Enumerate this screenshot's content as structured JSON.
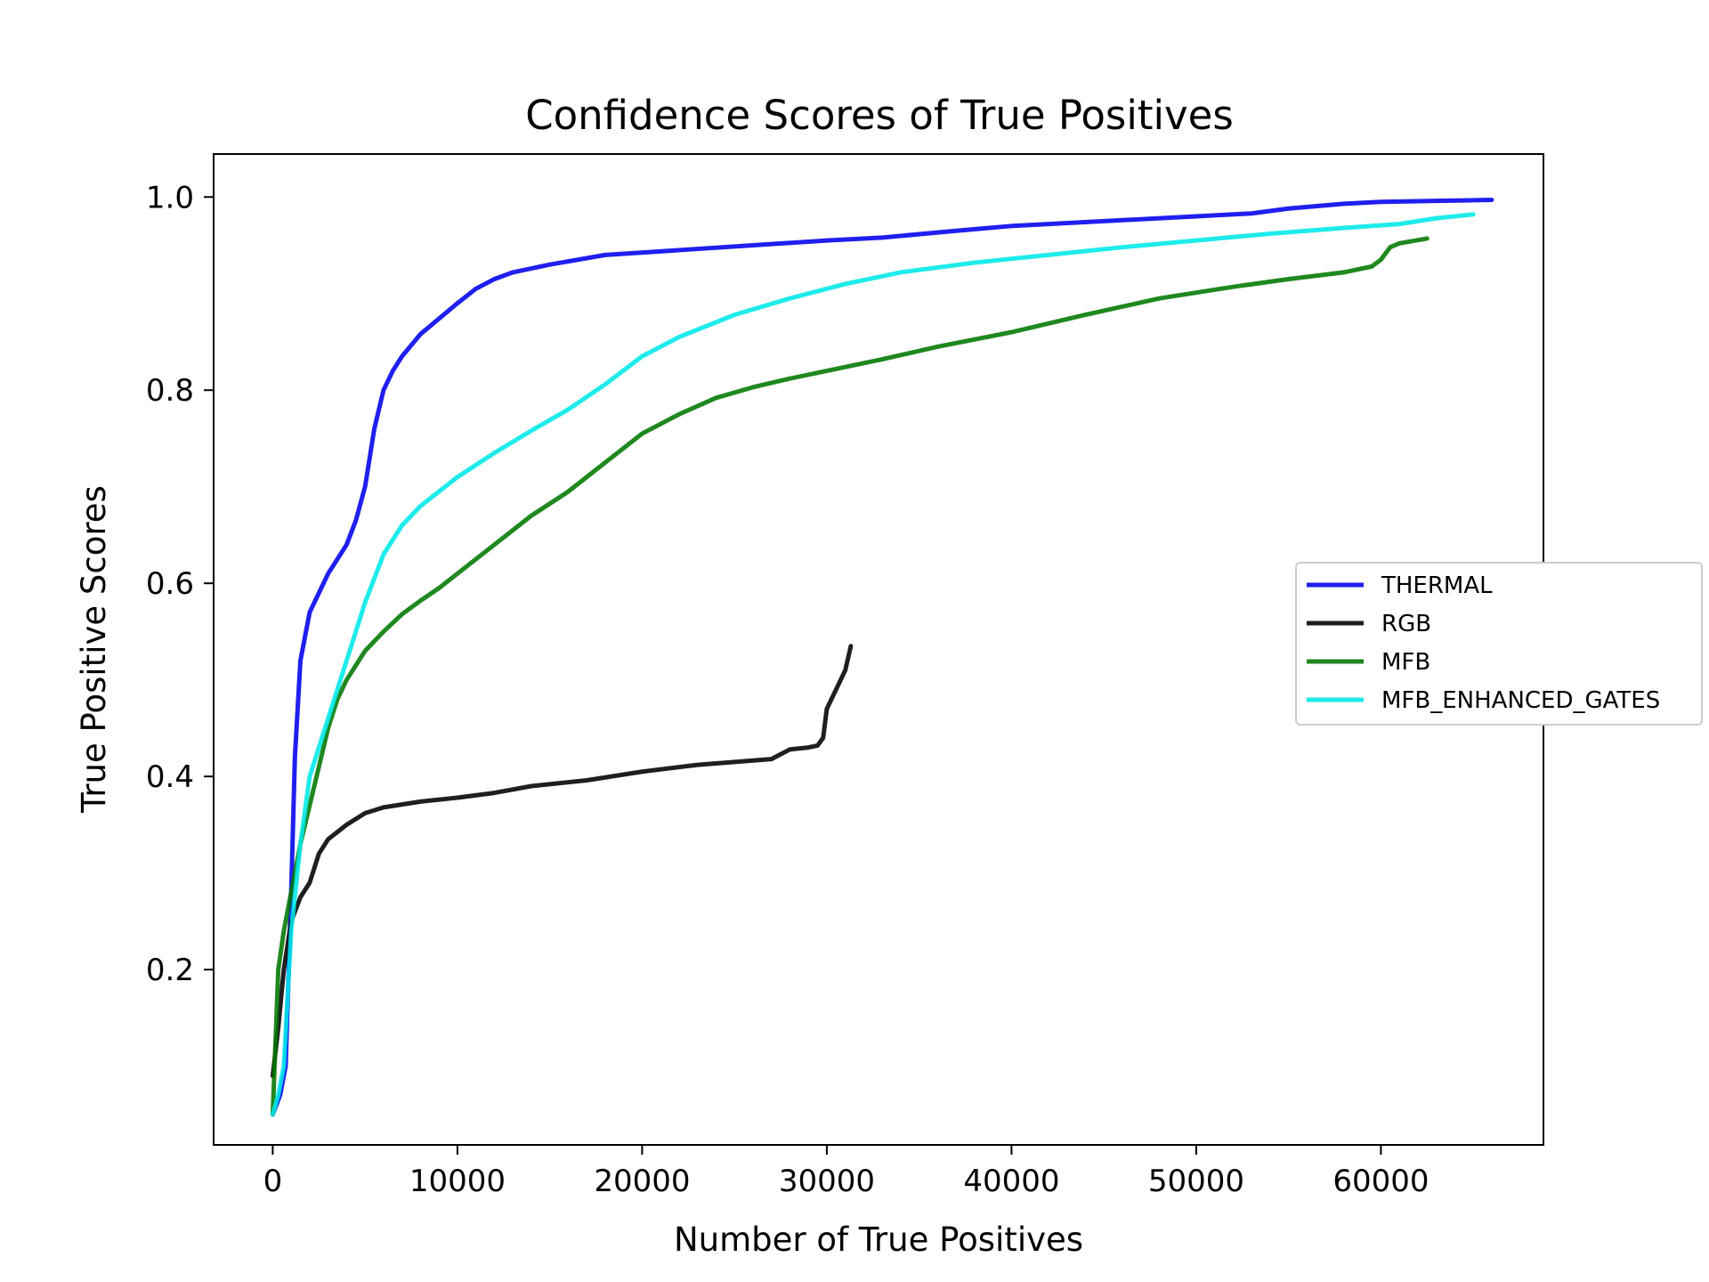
{
  "chart_data": {
    "type": "line",
    "title": "Confidence Scores of True Positives",
    "xlabel": "Number of True Positives",
    "ylabel": "True Positive Scores",
    "xlim": [
      -3200,
      68800
    ],
    "ylim": [
      0.0185,
      1.0445
    ],
    "xticks": [
      0,
      10000,
      20000,
      30000,
      40000,
      50000,
      60000
    ],
    "yticks": [
      0.2,
      0.4,
      0.6,
      0.8,
      1.0
    ],
    "xtick_labels": [
      "0",
      "10000",
      "20000",
      "30000",
      "40000",
      "50000",
      "60000"
    ],
    "ytick_labels": [
      "0.2",
      "0.4",
      "0.6",
      "0.8",
      "1.0"
    ],
    "grid": false,
    "legend_position": "right",
    "series": [
      {
        "name": "THERMAL",
        "color": "#0000ee",
        "x": [
          0,
          400,
          700,
          1000,
          1200,
          1500,
          2000,
          2500,
          3000,
          3500,
          4000,
          4500,
          5000,
          5500,
          6000,
          6500,
          7000,
          8000,
          9000,
          10000,
          11000,
          12000,
          13000,
          15000,
          18000,
          22000,
          26000,
          30000,
          33000,
          37000,
          40000,
          45000,
          50000,
          53000,
          55000,
          58000,
          60000,
          63000,
          66000
        ],
        "y": [
          0.05,
          0.07,
          0.1,
          0.28,
          0.42,
          0.52,
          0.57,
          0.59,
          0.61,
          0.625,
          0.64,
          0.665,
          0.7,
          0.76,
          0.8,
          0.82,
          0.835,
          0.858,
          0.874,
          0.89,
          0.905,
          0.915,
          0.922,
          0.93,
          0.94,
          0.945,
          0.95,
          0.955,
          0.958,
          0.965,
          0.97,
          0.975,
          0.98,
          0.983,
          0.988,
          0.993,
          0.995,
          0.996,
          0.997
        ]
      },
      {
        "name": "RGB",
        "color": "#000000",
        "x": [
          0,
          300,
          600,
          1000,
          1500,
          2000,
          2500,
          3000,
          4000,
          5000,
          6000,
          8000,
          10000,
          12000,
          14000,
          17000,
          20000,
          23000,
          27000,
          28000,
          29000,
          29500,
          29800,
          30000,
          30500,
          31000,
          31300
        ],
        "y": [
          0.09,
          0.14,
          0.2,
          0.25,
          0.275,
          0.29,
          0.32,
          0.335,
          0.35,
          0.362,
          0.368,
          0.374,
          0.378,
          0.383,
          0.39,
          0.396,
          0.405,
          0.412,
          0.418,
          0.428,
          0.43,
          0.432,
          0.44,
          0.47,
          0.49,
          0.51,
          0.535
        ]
      },
      {
        "name": "MFB",
        "color": "#007700",
        "x": [
          0,
          300,
          600,
          1000,
          1500,
          2000,
          2500,
          3000,
          3500,
          4000,
          5000,
          6000,
          7000,
          8000,
          9000,
          10000,
          12000,
          14000,
          16000,
          18000,
          20000,
          22000,
          24000,
          26000,
          28000,
          30000,
          33000,
          36000,
          40000,
          44000,
          48000,
          52000,
          55000,
          58000,
          59500,
          60000,
          60500,
          61000,
          62500
        ],
        "y": [
          0.05,
          0.2,
          0.24,
          0.28,
          0.33,
          0.37,
          0.41,
          0.45,
          0.48,
          0.5,
          0.53,
          0.55,
          0.568,
          0.582,
          0.595,
          0.61,
          0.64,
          0.67,
          0.695,
          0.725,
          0.755,
          0.775,
          0.792,
          0.803,
          0.812,
          0.82,
          0.832,
          0.845,
          0.86,
          0.878,
          0.895,
          0.907,
          0.915,
          0.922,
          0.928,
          0.935,
          0.948,
          0.952,
          0.957
        ]
      },
      {
        "name": "MFB_ENHANCED_GATES",
        "color": "#00e8e8",
        "x": [
          0,
          300,
          600,
          1000,
          1500,
          2000,
          3000,
          4000,
          5000,
          6000,
          7000,
          8000,
          9000,
          10000,
          12000,
          14000,
          16000,
          18000,
          20000,
          22000,
          25000,
          28000,
          31000,
          34000,
          38000,
          42000,
          46000,
          50000,
          54000,
          58000,
          61000,
          63000,
          65000
        ],
        "y": [
          0.05,
          0.07,
          0.1,
          0.24,
          0.33,
          0.4,
          0.46,
          0.52,
          0.58,
          0.63,
          0.66,
          0.68,
          0.695,
          0.71,
          0.735,
          0.758,
          0.78,
          0.806,
          0.835,
          0.855,
          0.878,
          0.895,
          0.91,
          0.922,
          0.932,
          0.94,
          0.948,
          0.955,
          0.962,
          0.968,
          0.972,
          0.978,
          0.982
        ]
      }
    ]
  }
}
